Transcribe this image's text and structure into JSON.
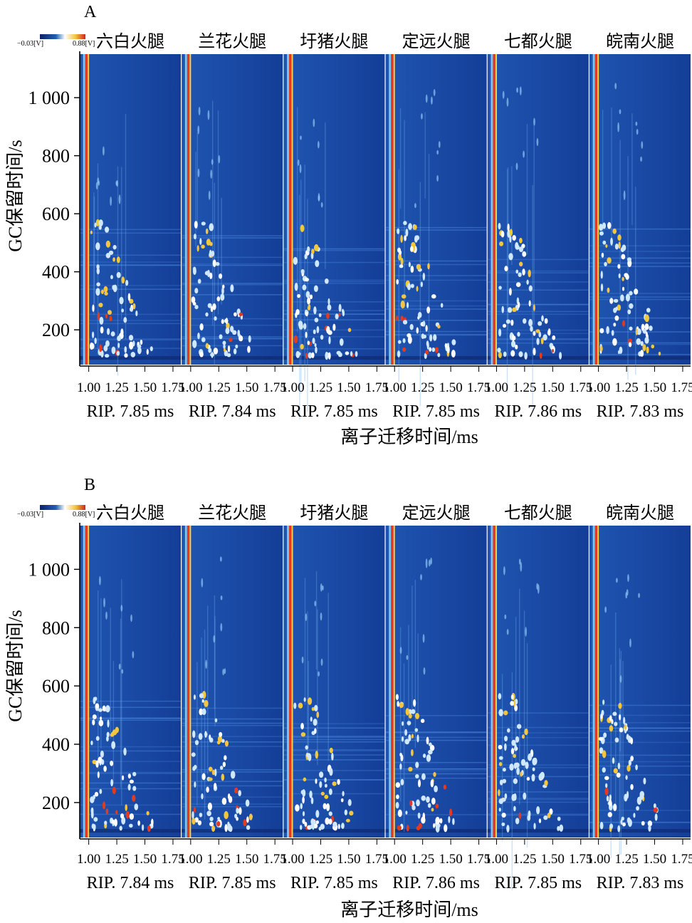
{
  "chart_data": [
    {
      "type": "heatmap",
      "panel_label": "A",
      "colorbar": {
        "min_label": "−0.03[V]",
        "max_label": "0.88[V]",
        "colors": [
          "#10206a",
          "#1d5fb5",
          "#ffffff",
          "#f3c640",
          "#d1271b"
        ]
      },
      "ylabel": "GC保留时间/s",
      "xlabel": "离子迁移时间/ms",
      "yticks": [
        {
          "value": 200,
          "label": "200"
        },
        {
          "value": 400,
          "label": "400"
        },
        {
          "value": 600,
          "label": "600"
        },
        {
          "value": 800,
          "label": "800"
        },
        {
          "value": 1000,
          "label": "1 000"
        }
      ],
      "xticks": [
        {
          "value": 1.0,
          "label": "1.00"
        },
        {
          "value": 1.25,
          "label": "1.25"
        },
        {
          "value": 1.5,
          "label": "1.50"
        },
        {
          "value": 1.75,
          "label": "1.75"
        }
      ],
      "xlim": [
        0.92,
        1.82
      ],
      "ylim": [
        80,
        1150
      ],
      "samples": [
        {
          "name": "六白火腿",
          "rip": "RIP. 7.85 ms"
        },
        {
          "name": "兰花火腿",
          "rip": "RIP. 7.84 ms"
        },
        {
          "name": "圩猪火腿",
          "rip": "RIP. 7.85 ms"
        },
        {
          "name": "定远火腿",
          "rip": "RIP. 7.85 ms"
        },
        {
          "name": "七都火腿",
          "rip": "RIP. 7.86 ms"
        },
        {
          "name": "皖南火腿",
          "rip": "RIP. 7.83 ms"
        }
      ]
    },
    {
      "type": "heatmap",
      "panel_label": "B",
      "colorbar": {
        "min_label": "−0.03[V]",
        "max_label": "0.88[V]",
        "colors": [
          "#10206a",
          "#1d5fb5",
          "#ffffff",
          "#f3c640",
          "#d1271b"
        ]
      },
      "ylabel": "GC保留时间/s",
      "xlabel": "离子迁移时间/ms",
      "yticks": [
        {
          "value": 200,
          "label": "200"
        },
        {
          "value": 400,
          "label": "400"
        },
        {
          "value": 600,
          "label": "600"
        },
        {
          "value": 800,
          "label": "800"
        },
        {
          "value": 1000,
          "label": "1 000"
        }
      ],
      "xticks": [
        {
          "value": 1.0,
          "label": "1.00"
        },
        {
          "value": 1.25,
          "label": "1.25"
        },
        {
          "value": 1.5,
          "label": "1.50"
        },
        {
          "value": 1.75,
          "label": "1.75"
        }
      ],
      "xlim": [
        0.92,
        1.82
      ],
      "ylim": [
        80,
        1150
      ],
      "samples": [
        {
          "name": "六白火腿",
          "rip": "RIP. 7.84 ms"
        },
        {
          "name": "兰花火腿",
          "rip": "RIP. 7.85 ms"
        },
        {
          "name": "圩猪火腿",
          "rip": "RIP. 7.85 ms"
        },
        {
          "name": "定远火腿",
          "rip": "RIP. 7.86 ms"
        },
        {
          "name": "七都火腿",
          "rip": "RIP. 7.85 ms"
        },
        {
          "name": "皖南火腿",
          "rip": "RIP. 7.83 ms"
        }
      ]
    }
  ]
}
